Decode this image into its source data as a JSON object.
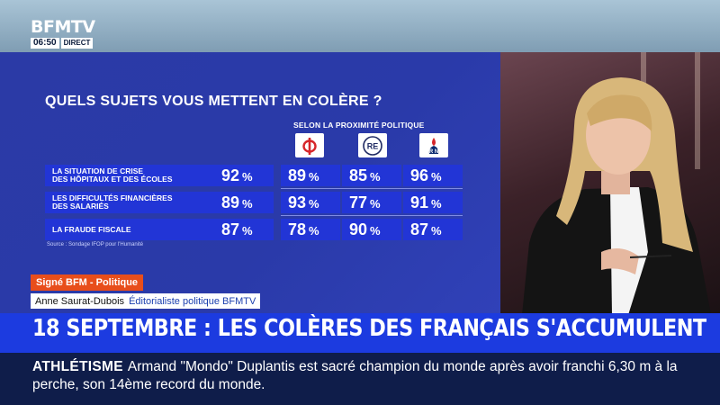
{
  "channel": {
    "logo_text": "BFMTV",
    "time": "06:50",
    "live_label": "DIRECT"
  },
  "poll": {
    "title": "QUELS SUJETS VOUS METTENT EN COLÈRE ?",
    "subtitle": "SELON LA PROXIMITÉ POLITIQUE",
    "parties": [
      {
        "icon": "lfi-phi-logo-icon",
        "color": "#d6262a"
      },
      {
        "icon": "renaissance-logo-icon",
        "label": "RE",
        "color": "#1f2a63"
      },
      {
        "icon": "rassemblement-national-logo-icon",
        "label": "R N",
        "color": "#0b2a6f"
      }
    ],
    "percent_sign": "%",
    "rows": [
      {
        "label": "LA SITUATION DE CRISE\nDES HÔPITAUX ET DES ÉCOLES",
        "total": "92",
        "values": [
          "89",
          "85",
          "96"
        ]
      },
      {
        "label": "LES DIFFICULTÉS FINANCIÈRES\nDES SALARIÉS",
        "total": "89",
        "values": [
          "93",
          "77",
          "91"
        ]
      },
      {
        "label": "LA FRAUDE FISCALE",
        "total": "87",
        "values": [
          "78",
          "90",
          "87"
        ]
      }
    ],
    "source": "Source : Sondage IFOP pour l'Humanité"
  },
  "signature": "Signé BFM - Politique",
  "presenter": {
    "name": "Anne Saurat-Dubois",
    "role": "Éditorialiste politique BFMTV"
  },
  "headline": "18 SEPTEMBRE : LES COLÈRES DES FRANÇAIS S'ACCUMULENT",
  "ticker": {
    "category": "ATHLÉTISME",
    "text": "Armand \"Mondo\" Duplantis est sacré champion du monde après avoir franchi 6,30 m à la perche, son 14ème record du monde."
  },
  "colors": {
    "panel_blue": "#2a3aa9",
    "cell_blue": "#2235d6",
    "headline_blue": "#1c3be0",
    "ticker_navy": "#0f1d4a",
    "accent_orange": "#e84e1b"
  }
}
